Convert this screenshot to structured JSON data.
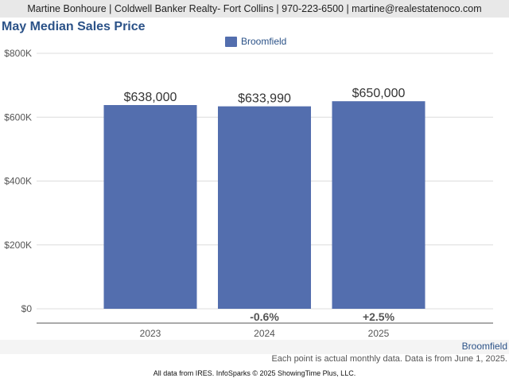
{
  "header": {
    "contact": "Martine Bonhoure | Coldwell Banker Realty- Fort Collins | 970-223-6500 | martine@realestatenoco.com"
  },
  "chart_data": {
    "type": "bar",
    "title": "May Median Sales Price",
    "categories": [
      "2023",
      "2024",
      "2025"
    ],
    "series": [
      {
        "name": "Broomfield",
        "values": [
          638000,
          633990,
          650000
        ],
        "value_labels": [
          "$638,000",
          "$633,990",
          "$650,000"
        ],
        "color": "#536eae"
      }
    ],
    "change_labels": [
      "",
      "-0.6%",
      "+2.5%"
    ],
    "ylim": [
      0,
      800000
    ],
    "yticks": [
      0,
      200000,
      400000,
      600000,
      800000
    ],
    "ytick_labels": [
      "$0",
      "$200K",
      "$400K",
      "$600K",
      "$800K"
    ],
    "legend_position": "top-center",
    "grid": true
  },
  "footer": {
    "region": "Broomfield",
    "note": "Each point is actual monthly data. Data is from June 1, 2025.",
    "source": "All data from IRES. InfoSparks © 2025 ShowingTime Plus, LLC."
  }
}
